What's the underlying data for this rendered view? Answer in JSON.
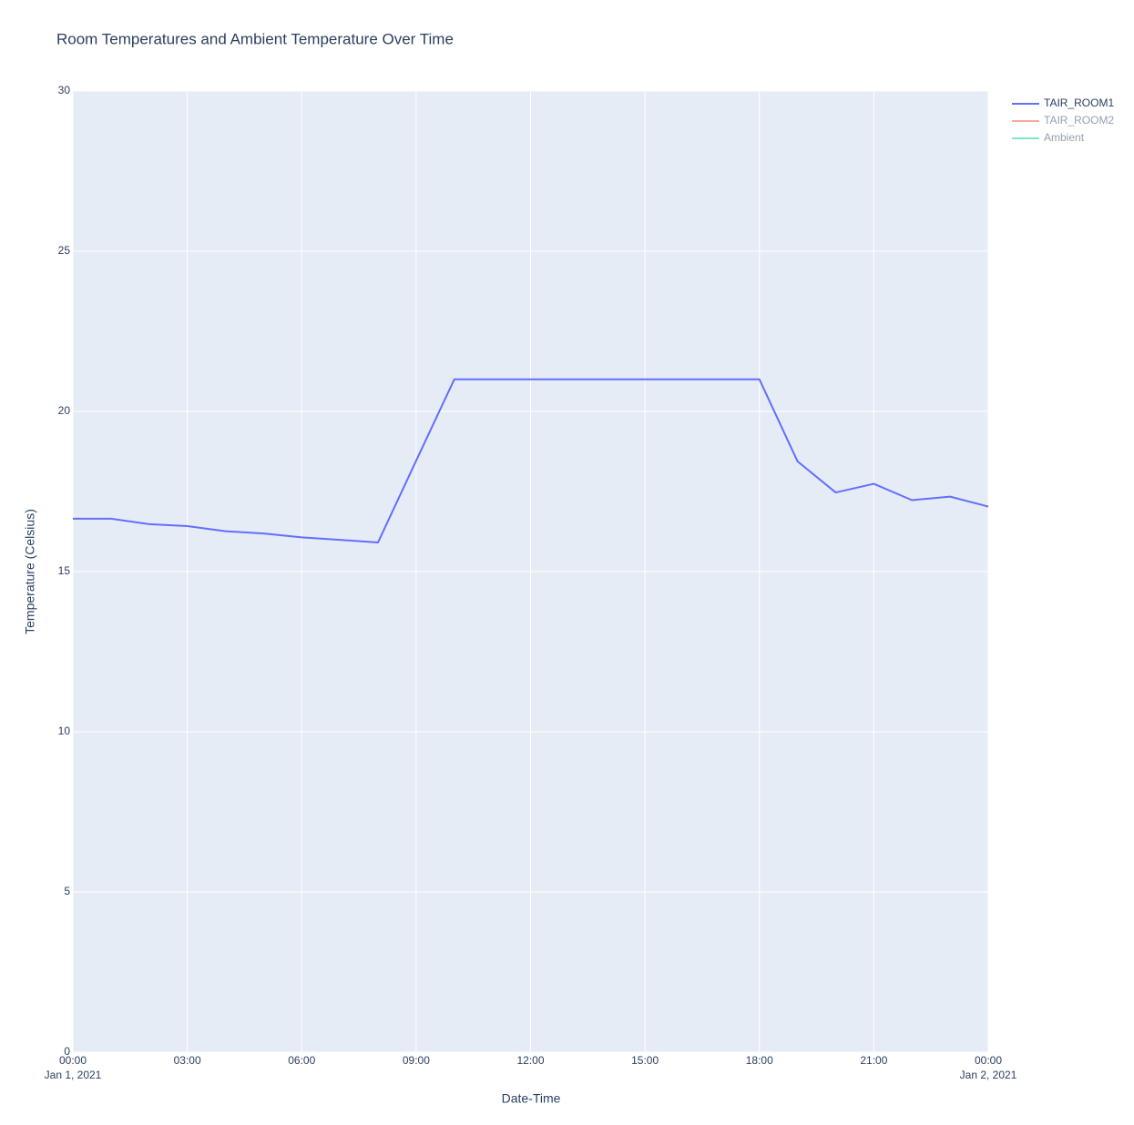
{
  "chart_data": {
    "type": "line",
    "title": "Room Temperatures and Ambient Temperature Over Time",
    "x_label": "Date-Time",
    "y_label": "Temperature (Celsius)",
    "x": [
      "2021-01-01T00:00",
      "2021-01-01T01:00",
      "2021-01-01T02:00",
      "2021-01-01T03:00",
      "2021-01-01T04:00",
      "2021-01-01T05:00",
      "2021-01-01T06:00",
      "2021-01-01T07:00",
      "2021-01-01T08:00",
      "2021-01-01T09:00",
      "2021-01-01T10:00",
      "2021-01-01T11:00",
      "2021-01-01T12:00",
      "2021-01-01T13:00",
      "2021-01-01T14:00",
      "2021-01-01T15:00",
      "2021-01-01T16:00",
      "2021-01-01T17:00",
      "2021-01-01T18:00",
      "2021-01-01T19:00",
      "2021-01-01T20:00",
      "2021-01-01T21:00",
      "2021-01-01T22:00",
      "2021-01-01T23:00",
      "2021-01-02T00:00"
    ],
    "series": [
      {
        "name": "TAIR_ROOM1",
        "color": "#636efa",
        "visible": true,
        "values": [
          16.65,
          16.65,
          16.48,
          16.42,
          16.26,
          16.19,
          16.07,
          15.99,
          15.91,
          18.46,
          21,
          21,
          21,
          21,
          21,
          21,
          21,
          21,
          21,
          18.44,
          17.47,
          17.74,
          17.23,
          17.34,
          17.03
        ]
      },
      {
        "name": "TAIR_ROOM2",
        "color": "#ef553b",
        "visible": "legendonly",
        "values": [
          null,
          null,
          null,
          null,
          null,
          null,
          null,
          null,
          null,
          null,
          null,
          null,
          null,
          null,
          null,
          null,
          null,
          null,
          null,
          null,
          null,
          null,
          null,
          null,
          null
        ]
      },
      {
        "name": "Ambient",
        "color": "#00cc96",
        "visible": "legendonly",
        "values": [
          null,
          null,
          null,
          null,
          null,
          null,
          null,
          null,
          null,
          null,
          null,
          null,
          null,
          null,
          null,
          null,
          null,
          null,
          null,
          null,
          null,
          null,
          null,
          null,
          null
        ]
      }
    ],
    "xlim": [
      "2021-01-01T00:00",
      "2021-01-02T00:00"
    ],
    "xticks": [
      {
        "value": "2021-01-01T00:00",
        "label": "00:00",
        "sublabel": "Jan 1, 2021"
      },
      {
        "value": "2021-01-01T03:00",
        "label": "03:00"
      },
      {
        "value": "2021-01-01T06:00",
        "label": "06:00"
      },
      {
        "value": "2021-01-01T09:00",
        "label": "09:00"
      },
      {
        "value": "2021-01-01T12:00",
        "label": "12:00"
      },
      {
        "value": "2021-01-01T15:00",
        "label": "15:00"
      },
      {
        "value": "2021-01-01T18:00",
        "label": "18:00"
      },
      {
        "value": "2021-01-01T21:00",
        "label": "21:00"
      },
      {
        "value": "2021-01-02T00:00",
        "label": "00:00",
        "sublabel": "Jan 2, 2021"
      }
    ],
    "ylim": [
      0,
      30
    ],
    "yticks": [
      0,
      5,
      10,
      15,
      20,
      25,
      30
    ],
    "grid": true,
    "legend": "right"
  }
}
